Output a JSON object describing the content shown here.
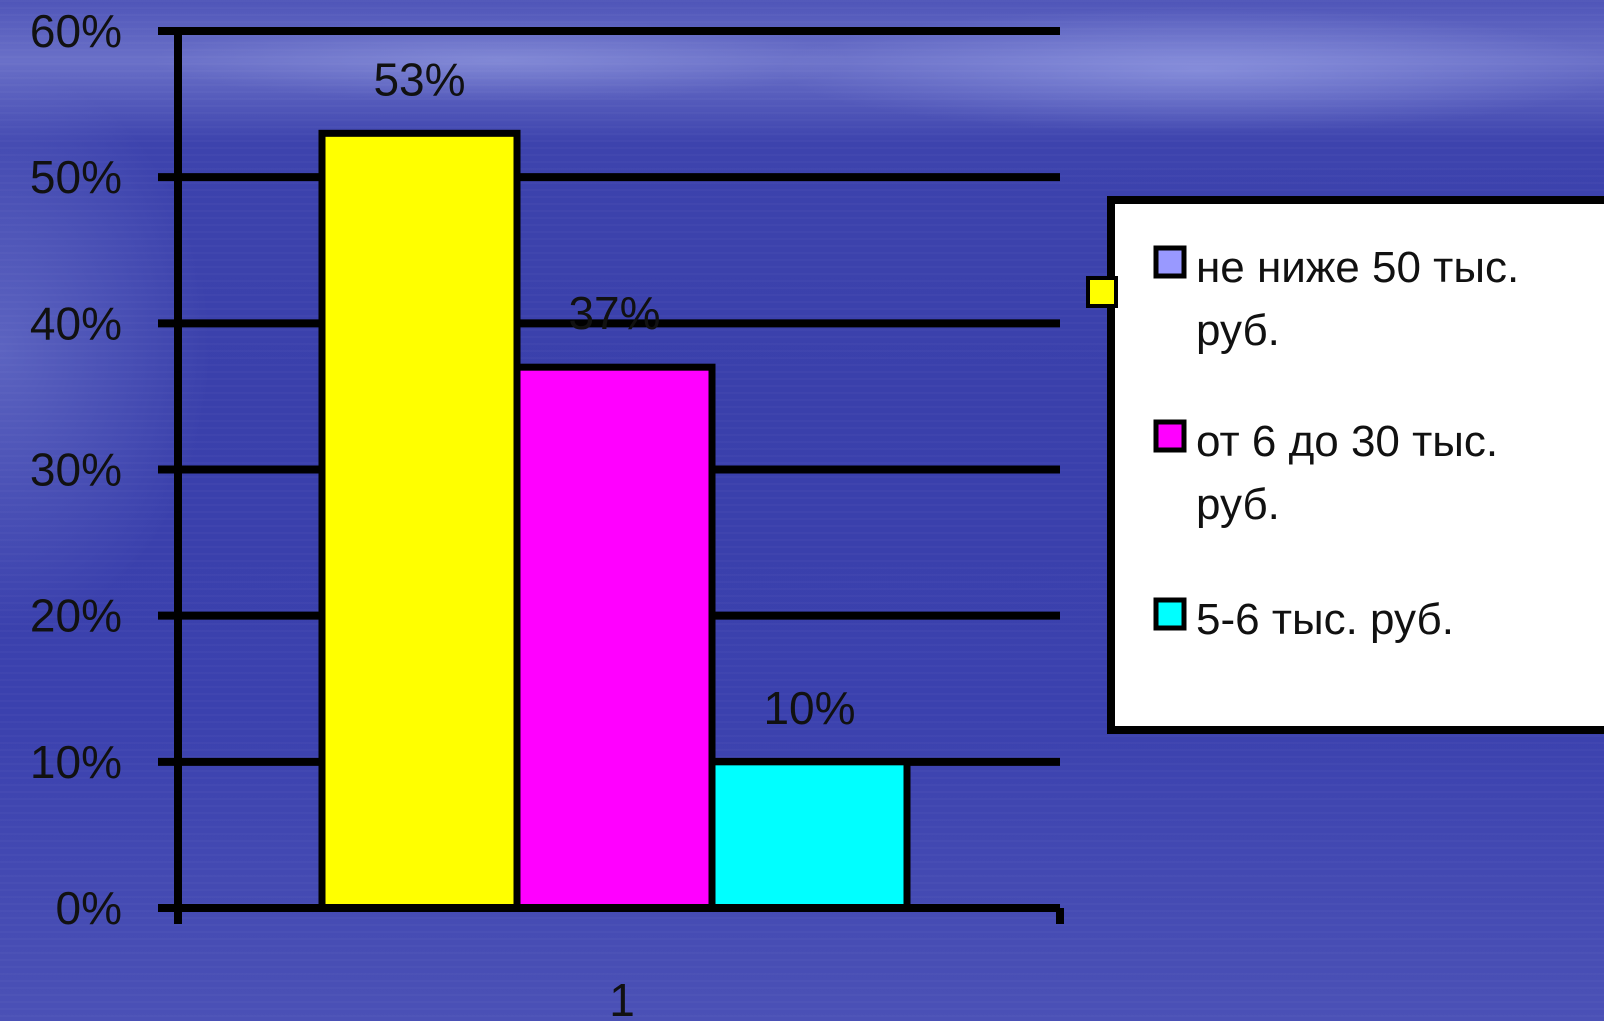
{
  "chart_data": {
    "type": "bar",
    "categories": [
      "1"
    ],
    "series": [
      {
        "name": "не ниже 50 тыс. руб.",
        "values": [
          53
        ],
        "color": "#ffff00",
        "value_label": "53%"
      },
      {
        "name": "от 6 до 30 тыс. руб.",
        "values": [
          37
        ],
        "color": "#ff00ff",
        "value_label": "37%"
      },
      {
        "name": "5-6 тыс. руб.",
        "values": [
          10
        ],
        "color": "#00ffff",
        "value_label": "10%"
      }
    ],
    "legend_entries": [
      {
        "lines": [
          "не ниже 50 тыс.",
          "руб."
        ],
        "swatch_color": "#9999ff"
      },
      {
        "lines": [
          "от 6 до 30 тыс.",
          "руб."
        ],
        "swatch_color": "#ff00ff"
      },
      {
        "lines": [
          "5-6 тыс. руб."
        ],
        "swatch_color": "#00ffff"
      }
    ],
    "yticks": [
      "0%",
      "10%",
      "20%",
      "30%",
      "40%",
      "50%",
      "60%"
    ],
    "ylim": [
      0,
      60
    ],
    "grid": true,
    "legend_position": "right",
    "selection_handle_color": "#ffff00"
  }
}
